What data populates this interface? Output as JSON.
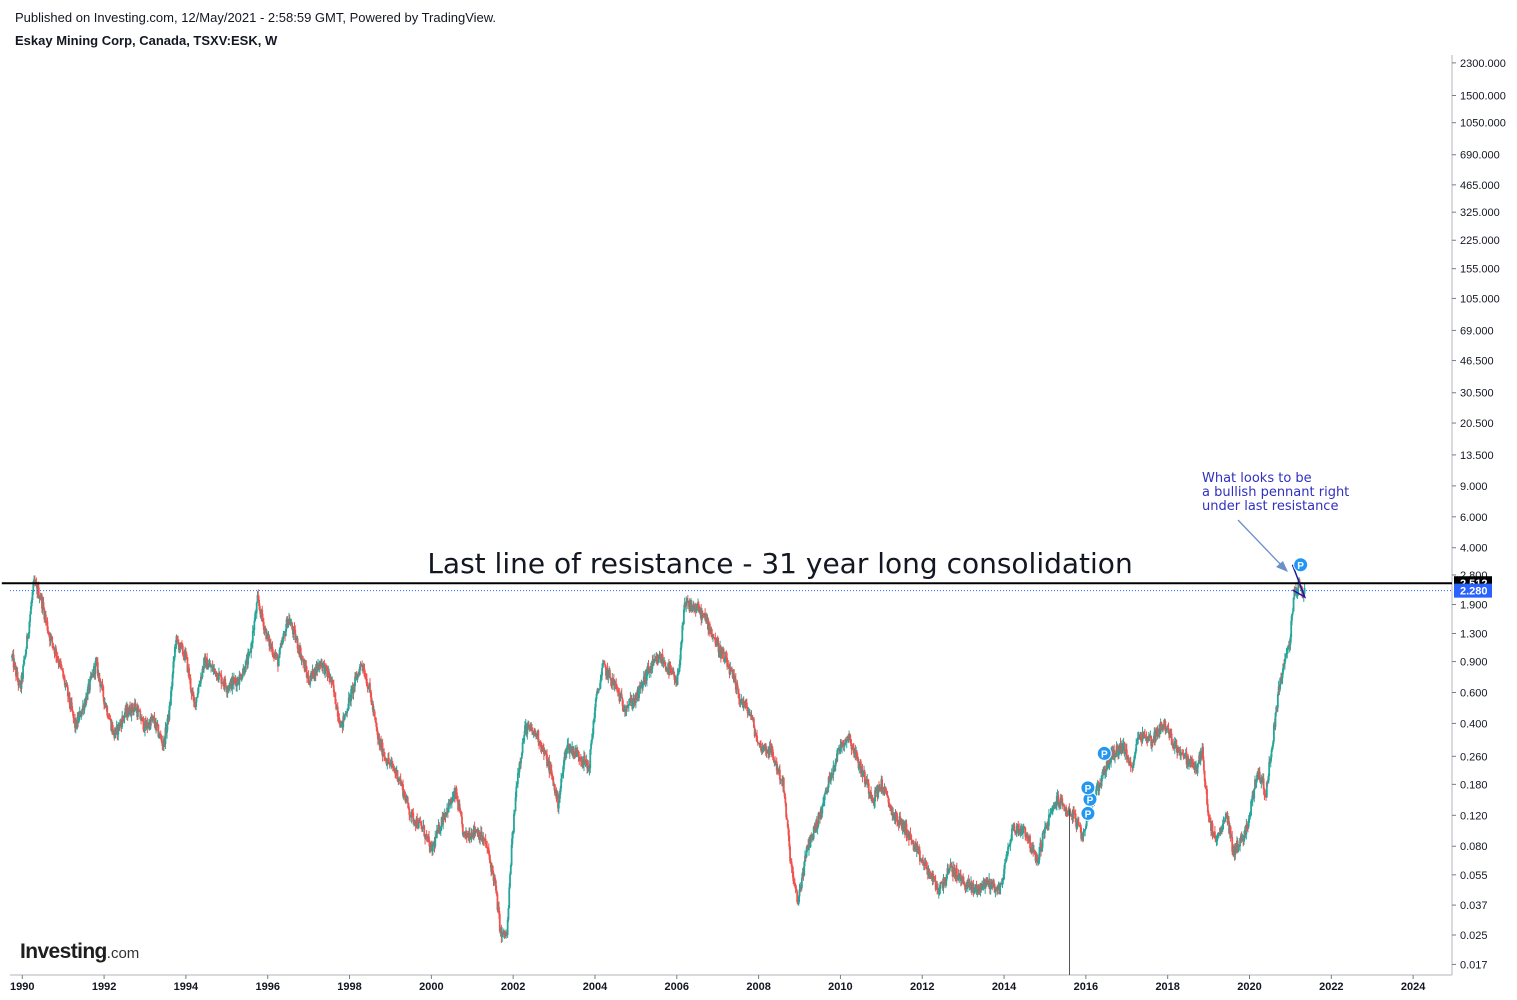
{
  "header": {
    "published": "Published on Investing.com, 12/May/2021 - 2:58:59 GMT, Powered by TradingView.",
    "symbol": "Eskay Mining Corp, Canada, TSXV:ESK, W"
  },
  "logo": {
    "brand": "Investing",
    "suffix": ".com"
  },
  "chart_data": {
    "type": "candlestick",
    "title": "Eskay Mining Corp, Canada, TSXV:ESK, W",
    "interval": "weekly",
    "y_scale": "log",
    "x_range": [
      1989.7,
      2024.95
    ],
    "ylim": [
      0.0148,
      2550
    ],
    "x_ticks": [
      "1990",
      "1992",
      "1994",
      "1996",
      "1998",
      "2000",
      "2002",
      "2004",
      "2006",
      "2008",
      "2010",
      "2012",
      "2014",
      "2016",
      "2018",
      "2020",
      "2022",
      "2024"
    ],
    "y_ticks": [
      "2300.000",
      "1500.000",
      "1050.000",
      "690.000",
      "465.000",
      "325.000",
      "225.000",
      "155.000",
      "105.000",
      "69.000",
      "46.500",
      "30.500",
      "20.500",
      "13.500",
      "9.000",
      "6.000",
      "4.000",
      "2.800",
      "1.900",
      "1.300",
      "0.900",
      "0.600",
      "0.400",
      "0.260",
      "0.180",
      "0.120",
      "0.080",
      "0.055",
      "0.037",
      "0.025",
      "0.017"
    ],
    "price_path": [
      [
        1989.75,
        0.95
      ],
      [
        1989.95,
        0.62
      ],
      [
        1990.1,
        1.1
      ],
      [
        1990.28,
        2.5
      ],
      [
        1990.45,
        2.1
      ],
      [
        1990.65,
        1.3
      ],
      [
        1990.9,
        0.9
      ],
      [
        1991.1,
        0.6
      ],
      [
        1991.3,
        0.38
      ],
      [
        1991.55,
        0.55
      ],
      [
        1991.8,
        0.88
      ],
      [
        1992.0,
        0.55
      ],
      [
        1992.25,
        0.34
      ],
      [
        1992.5,
        0.45
      ],
      [
        1992.75,
        0.5
      ],
      [
        1993.0,
        0.38
      ],
      [
        1993.2,
        0.42
      ],
      [
        1993.45,
        0.3
      ],
      [
        1993.6,
        0.48
      ],
      [
        1993.75,
        1.2
      ],
      [
        1994.0,
        0.95
      ],
      [
        1994.2,
        0.5
      ],
      [
        1994.45,
        0.9
      ],
      [
        1994.75,
        0.78
      ],
      [
        1995.0,
        0.65
      ],
      [
        1995.3,
        0.72
      ],
      [
        1995.55,
        0.95
      ],
      [
        1995.75,
        2.0
      ],
      [
        1996.0,
        1.2
      ],
      [
        1996.25,
        0.9
      ],
      [
        1996.5,
        1.6
      ],
      [
        1996.75,
        1.1
      ],
      [
        1997.0,
        0.7
      ],
      [
        1997.3,
        0.9
      ],
      [
        1997.55,
        0.7
      ],
      [
        1997.8,
        0.38
      ],
      [
        1998.0,
        0.55
      ],
      [
        1998.3,
        0.9
      ],
      [
        1998.5,
        0.6
      ],
      [
        1998.7,
        0.32
      ],
      [
        1998.9,
        0.25
      ],
      [
        1999.2,
        0.2
      ],
      [
        1999.5,
        0.12
      ],
      [
        1999.8,
        0.1
      ],
      [
        2000.0,
        0.075
      ],
      [
        2000.3,
        0.12
      ],
      [
        2000.6,
        0.16
      ],
      [
        2000.8,
        0.09
      ],
      [
        2001.1,
        0.1
      ],
      [
        2001.35,
        0.08
      ],
      [
        2001.55,
        0.05
      ],
      [
        2001.7,
        0.025
      ],
      [
        2001.85,
        0.025
      ],
      [
        2001.95,
        0.072
      ],
      [
        2002.1,
        0.2
      ],
      [
        2002.3,
        0.38
      ],
      [
        2002.6,
        0.34
      ],
      [
        2002.9,
        0.22
      ],
      [
        2003.1,
        0.14
      ],
      [
        2003.3,
        0.3
      ],
      [
        2003.65,
        0.26
      ],
      [
        2003.85,
        0.22
      ],
      [
        2004.0,
        0.5
      ],
      [
        2004.2,
        0.85
      ],
      [
        2004.5,
        0.65
      ],
      [
        2004.7,
        0.5
      ],
      [
        2005.0,
        0.55
      ],
      [
        2005.3,
        0.8
      ],
      [
        2005.6,
        0.95
      ],
      [
        2005.9,
        0.75
      ],
      [
        2006.0,
        0.65
      ],
      [
        2006.2,
        1.9
      ],
      [
        2006.5,
        1.8
      ],
      [
        2006.75,
        1.5
      ],
      [
        2007.0,
        1.1
      ],
      [
        2007.3,
        0.8
      ],
      [
        2007.55,
        0.55
      ],
      [
        2007.8,
        0.45
      ],
      [
        2008.0,
        0.3
      ],
      [
        2008.3,
        0.28
      ],
      [
        2008.6,
        0.18
      ],
      [
        2008.8,
        0.06
      ],
      [
        2008.95,
        0.038
      ],
      [
        2009.2,
        0.08
      ],
      [
        2009.5,
        0.12
      ],
      [
        2009.75,
        0.2
      ],
      [
        2010.0,
        0.3
      ],
      [
        2010.2,
        0.34
      ],
      [
        2010.5,
        0.22
      ],
      [
        2010.8,
        0.15
      ],
      [
        2011.0,
        0.18
      ],
      [
        2011.3,
        0.12
      ],
      [
        2011.6,
        0.1
      ],
      [
        2011.85,
        0.075
      ],
      [
        2012.1,
        0.06
      ],
      [
        2012.4,
        0.045
      ],
      [
        2012.7,
        0.06
      ],
      [
        2013.0,
        0.05
      ],
      [
        2013.3,
        0.045
      ],
      [
        2013.6,
        0.05
      ],
      [
        2013.9,
        0.045
      ],
      [
        2014.2,
        0.1
      ],
      [
        2014.5,
        0.1
      ],
      [
        2014.8,
        0.065
      ],
      [
        2015.0,
        0.1
      ],
      [
        2015.3,
        0.15
      ],
      [
        2015.5,
        0.13
      ],
      [
        2015.7,
        0.12
      ],
      [
        2015.9,
        0.09
      ],
      [
        2016.1,
        0.13
      ],
      [
        2016.4,
        0.2
      ],
      [
        2016.6,
        0.26
      ],
      [
        2016.9,
        0.3
      ],
      [
        2017.1,
        0.22
      ],
      [
        2017.3,
        0.35
      ],
      [
        2017.6,
        0.32
      ],
      [
        2017.9,
        0.4
      ],
      [
        2018.1,
        0.32
      ],
      [
        2018.4,
        0.26
      ],
      [
        2018.7,
        0.22
      ],
      [
        2018.85,
        0.28
      ],
      [
        2019.0,
        0.11
      ],
      [
        2019.2,
        0.085
      ],
      [
        2019.45,
        0.12
      ],
      [
        2019.6,
        0.075
      ],
      [
        2019.85,
        0.09
      ],
      [
        2020.0,
        0.12
      ],
      [
        2020.2,
        0.22
      ],
      [
        2020.4,
        0.16
      ],
      [
        2020.55,
        0.3
      ],
      [
        2020.7,
        0.6
      ],
      [
        2020.85,
        0.9
      ],
      [
        2020.95,
        1.05
      ],
      [
        2021.0,
        1.3
      ],
      [
        2021.1,
        2.2
      ],
      [
        2021.2,
        2.45
      ],
      [
        2021.3,
        2.25
      ],
      [
        2021.35,
        2.28
      ]
    ],
    "annotations": [
      {
        "text": "Last line of resistance - 31 year long consolidation"
      },
      {
        "text": "What looks to be"
      },
      {
        "text": "a bullish pennant right"
      },
      {
        "text": "under last resistance"
      }
    ],
    "markers": [
      {
        "x": 2016.05,
        "y": 0.123,
        "label": "P"
      },
      {
        "x": 2016.1,
        "y": 0.148,
        "label": "P"
      },
      {
        "x": 2016.05,
        "y": 0.172,
        "label": "P"
      },
      {
        "x": 2016.45,
        "y": 0.27,
        "label": "P"
      },
      {
        "x": 2021.25,
        "y": 3.2,
        "label": "P"
      }
    ],
    "resistance_level": 2.512,
    "last_price": 2.28,
    "price_labels": [
      {
        "text": "2.512",
        "value": 2.512,
        "bg": "#000000"
      },
      {
        "text": "2.280",
        "value": 2.28,
        "bg": "#2962ff"
      }
    ],
    "colors": {
      "up": "#26a69a",
      "down": "#ef5350",
      "resistance": "#000000",
      "annotation": "#3030c0",
      "marker": "#2196f3",
      "last_price_line": "#2962ff"
    }
  }
}
